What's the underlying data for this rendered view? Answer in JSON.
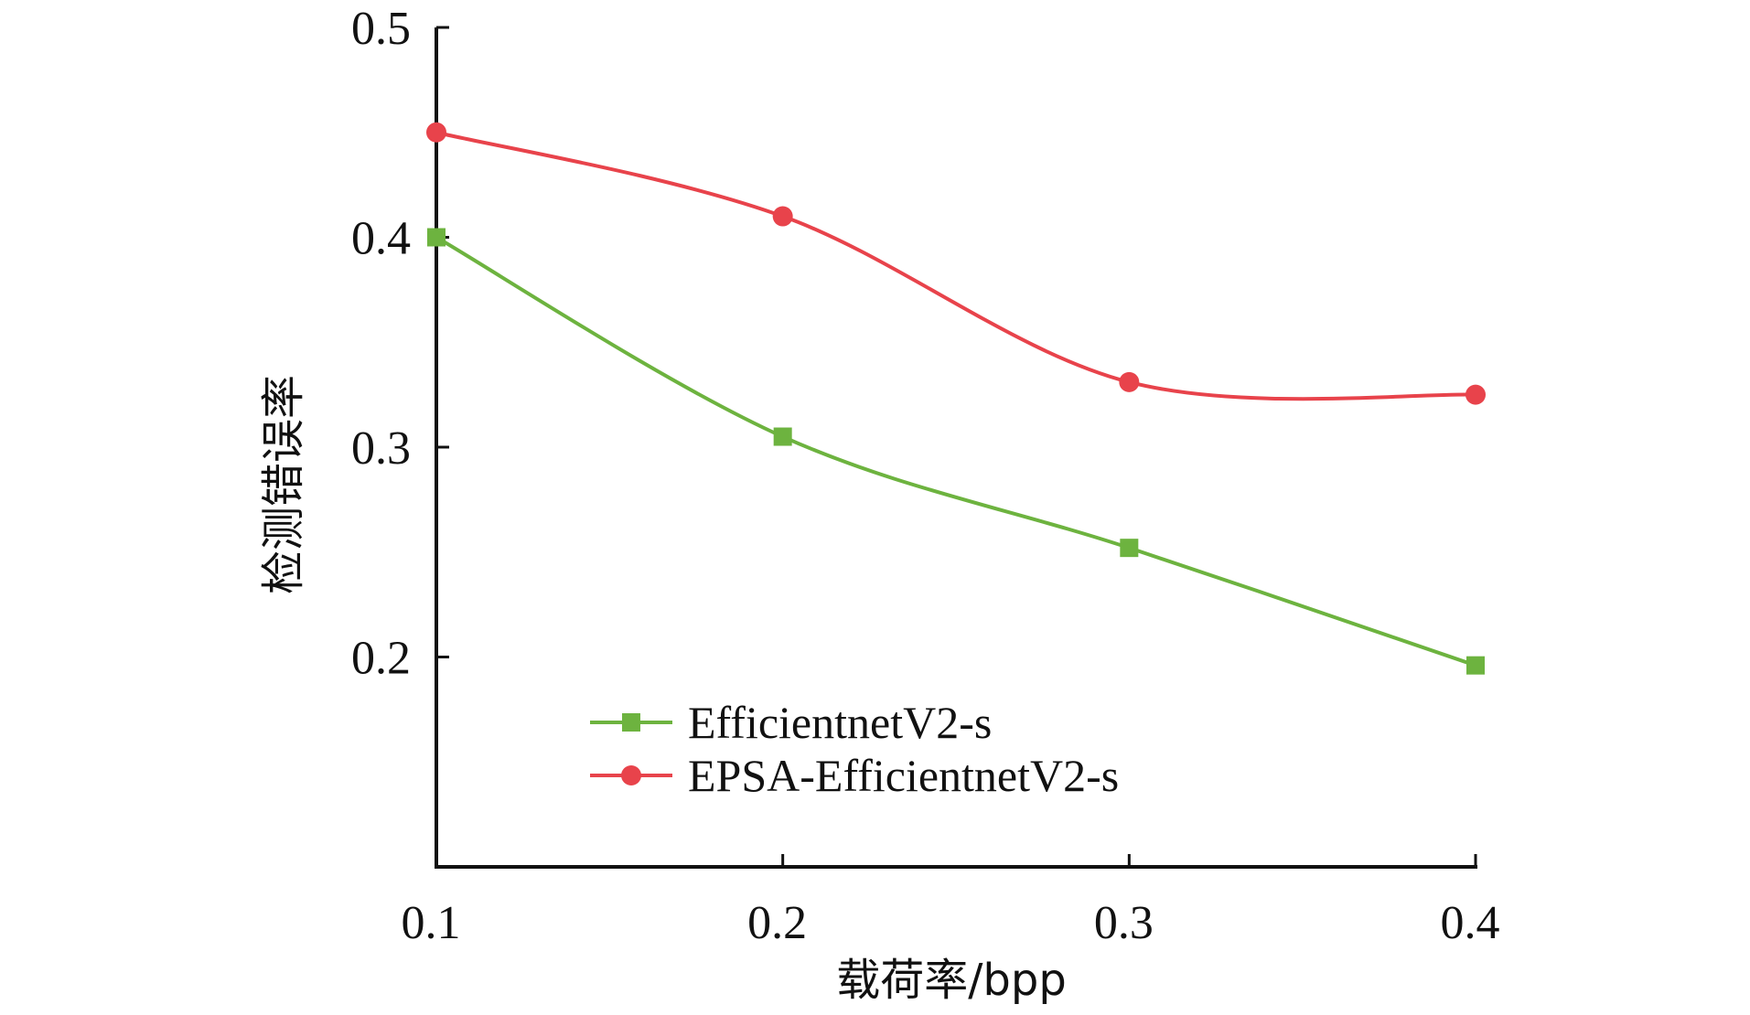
{
  "chart_data": {
    "type": "line",
    "title": "",
    "xlabel": "载荷率/bpp",
    "ylabel": "检测错误率",
    "x": [
      0.1,
      0.2,
      0.3,
      0.4
    ],
    "xlim": [
      0.1,
      0.4
    ],
    "ylim": [
      0.1,
      0.5
    ],
    "xticks": [
      "0.1",
      "0.2",
      "0.3",
      "0.4"
    ],
    "yticks": [
      "0.2",
      "0.3",
      "0.4",
      "0.5"
    ],
    "grid": false,
    "legend_position": "bottom-center",
    "series": [
      {
        "name": "EfficientnetV2-s",
        "values": [
          0.4,
          0.305,
          0.252,
          0.196
        ],
        "color": "#6db33f",
        "marker": "square"
      },
      {
        "name": "EPSA-EfficientnetV2-s",
        "values": [
          0.45,
          0.41,
          0.331,
          0.325
        ],
        "color": "#e8434b",
        "marker": "circle"
      }
    ]
  }
}
